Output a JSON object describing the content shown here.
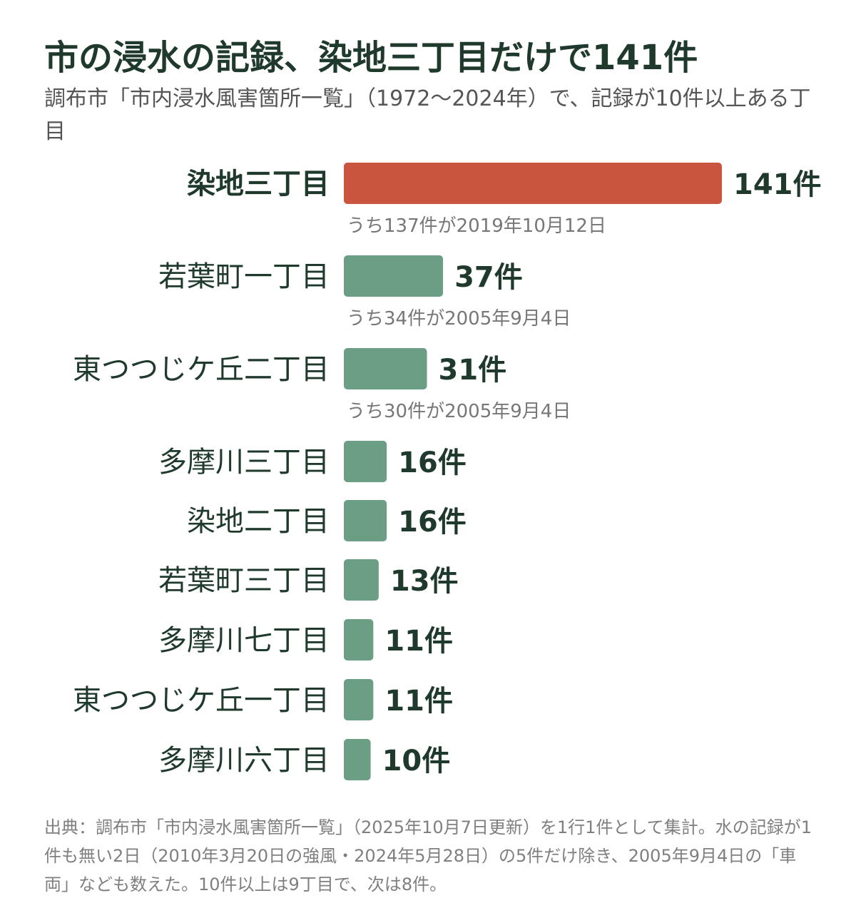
{
  "title": "市の浸水の記録、染地三丁目だけで141件",
  "subtitle": "調布市「市内浸水風害箇所一覧」（1972〜2024年）で、記録が10件以上ある丁目",
  "source": "出典：調布市「市内浸水風害箇所一覧」（2025年10月7日更新）を1行1件として集計。水の記録が1件も無い2日（2010年3月20日の強風・2024年5月28日）の5件だけ除き、2005年9月4日の「車両」なども数えた。10件以上は9丁目で、次は8件。",
  "chart_data": {
    "type": "bar",
    "orientation": "horizontal",
    "title": "市の浸水の記録、染地三丁目だけで141件",
    "subtitle": "調布市「市内浸水風害箇所一覧」（1972〜2024年）で、記録が10件以上ある丁目",
    "categories": [
      "染地三丁目",
      "若葉町一丁目",
      "東つつじケ丘二丁目",
      "多摩川三丁目",
      "染地二丁目",
      "若葉町三丁目",
      "多摩川七丁目",
      "東つつじケ丘一丁目",
      "多摩川六丁目"
    ],
    "values": [
      141,
      37,
      31,
      16,
      16,
      13,
      11,
      11,
      10
    ],
    "value_labels": [
      "141件",
      "37件",
      "31件",
      "16件",
      "16件",
      "13件",
      "11件",
      "11件",
      "10件"
    ],
    "annotations": [
      "うち137件が2019年10月12日",
      "うち34件が2005年9月4日",
      "うち30件が2005年9月4日",
      "",
      "",
      "",
      "",
      "",
      ""
    ],
    "highlight_index": 0,
    "colors": {
      "highlight": "#c9553f",
      "default": "#6b9e85",
      "text_dark": "#1f3a2d",
      "annotation": "#777777"
    },
    "xlim": [
      0,
      141
    ],
    "grid": false,
    "legend": "none"
  }
}
